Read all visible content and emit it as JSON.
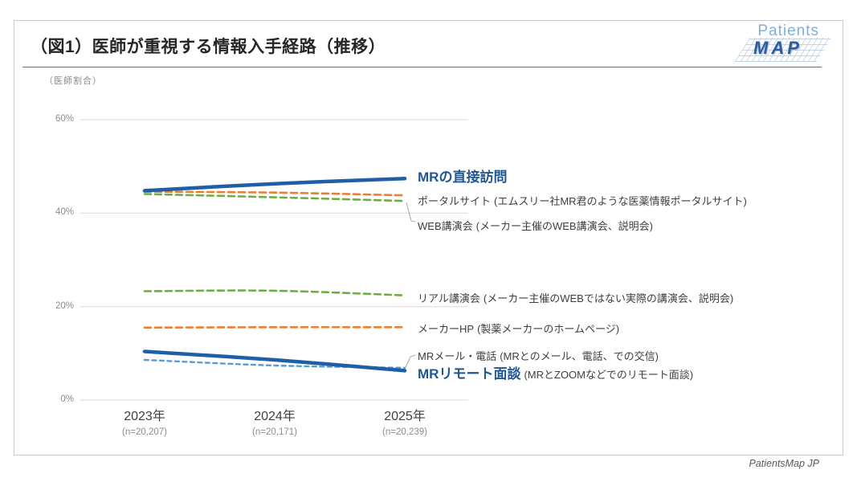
{
  "header": {
    "title": "（図1）医師が重視する情報入手経路（推移）",
    "logo_top": "Patients",
    "logo_bottom": "MAP"
  },
  "footer": {
    "credit": "PatientsMap JP"
  },
  "chart_data": {
    "type": "line",
    "title": "（図1）医師が重視する情報入手経路（推移）",
    "ylabel": "（医師割合）",
    "x": [
      "2023年",
      "2024年",
      "2025年"
    ],
    "x_sub": [
      "(n=20,207)",
      "(n=20,171)",
      "(n=20,239)"
    ],
    "ylim": [
      0,
      60
    ],
    "yticks": [
      0,
      20,
      40,
      60
    ],
    "ytick_labels": [
      "0%",
      "20%",
      "40%",
      "60%"
    ],
    "grid": true,
    "legend_position": "labels-at-line-end",
    "series": [
      {
        "name": "MRの直接訪問",
        "desc": "",
        "values": [
          44.8,
          46.3,
          47.4
        ],
        "color": "#1f5fa8",
        "style": "solid",
        "emphasis": true
      },
      {
        "name": "ポータルサイト",
        "desc": "(エムスリー社MR君のような医薬情報ポータルサイト)",
        "values": [
          44.6,
          44.4,
          43.8
        ],
        "color": "#ed7d31",
        "style": "dashed",
        "emphasis": false
      },
      {
        "name": "WEB講演会",
        "desc": "(メーカー主催のWEB講演会、説明会)",
        "values": [
          44.1,
          43.4,
          42.6
        ],
        "color": "#70ad47",
        "style": "dashed",
        "emphasis": false
      },
      {
        "name": "リアル講演会",
        "desc": "(メーカー主催のWEBではない実際の講演会、説明会)",
        "values": [
          23.3,
          23.4,
          22.4
        ],
        "color": "#70ad47",
        "style": "dashed",
        "emphasis": false
      },
      {
        "name": "メーカーHP",
        "desc": "(製薬メーカーのホームページ)",
        "values": [
          15.5,
          15.6,
          15.6
        ],
        "color": "#ed7d31",
        "style": "dashed",
        "emphasis": false
      },
      {
        "name": "MRメール・電話",
        "desc": "(MRとのメール、電話、での交信)",
        "values": [
          8.6,
          7.4,
          6.9
        ],
        "color": "#5b9bd5",
        "style": "dashed",
        "emphasis": false
      },
      {
        "name": "MRリモート面談",
        "desc": "(MRとZOOMなどでのリモート面談)",
        "values": [
          10.4,
          8.6,
          6.3
        ],
        "color": "#1f5fa8",
        "style": "solid",
        "emphasis": true
      }
    ],
    "colors": {
      "grid": "#d9d9d9",
      "axis_text": "#8c8c8c",
      "label_text": "#3f3f3f",
      "emphasis_label": "#1f5795",
      "connector": "#a6a6a6"
    }
  }
}
